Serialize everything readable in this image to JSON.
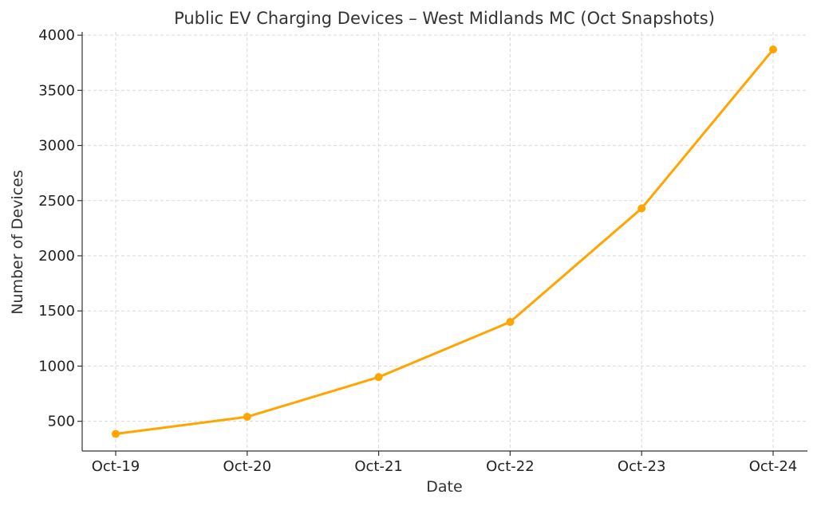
{
  "chart_data": {
    "type": "line",
    "title": "Public EV Charging Devices – West Midlands MC (Oct Snapshots)",
    "xlabel": "Date",
    "ylabel": "Number of Devices",
    "categories": [
      "Oct-19",
      "Oct-20",
      "Oct-21",
      "Oct-22",
      "Oct-23",
      "Oct-24"
    ],
    "series": [
      {
        "values": [
          385,
          540,
          900,
          1400,
          2430,
          3870
        ],
        "color": "#FFA500"
      }
    ],
    "ylim": [
      230,
      4030
    ],
    "yticks": [
      500,
      1000,
      1500,
      2000,
      2500,
      3000,
      3500,
      4000
    ],
    "grid": true,
    "legend": "none",
    "markers": "circle"
  }
}
